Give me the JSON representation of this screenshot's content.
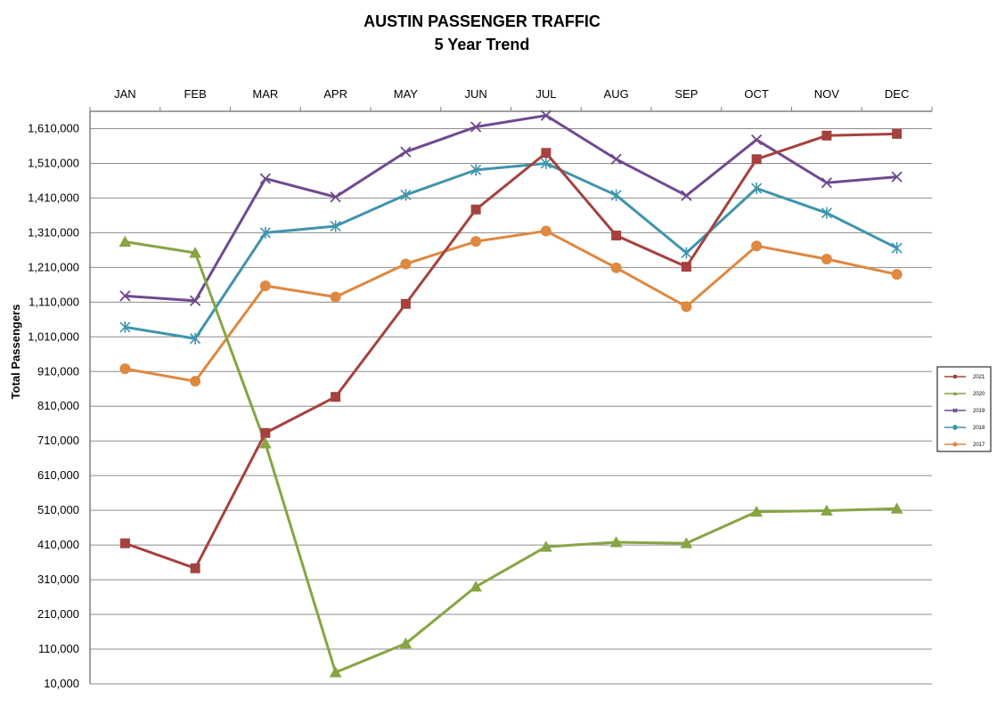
{
  "chart_data": {
    "type": "line",
    "title": "AUSTIN PASSENGER TRAFFIC",
    "subtitle": "5 Year Trend",
    "xlabel": "",
    "ylabel": "Total Passengers",
    "categories": [
      "JAN",
      "FEB",
      "MAR",
      "APR",
      "MAY",
      "JUN",
      "JUL",
      "AUG",
      "SEP",
      "OCT",
      "NOV",
      "DEC"
    ],
    "x_axis_position": "top",
    "ylim": [
      10000,
      1660000
    ],
    "yticks": [
      10000,
      110000,
      210000,
      310000,
      410000,
      510000,
      610000,
      710000,
      810000,
      910000,
      1010000,
      1110000,
      1210000,
      1310000,
      1410000,
      1510000,
      1610000
    ],
    "ytick_labels": [
      "10,000",
      "110,000",
      "210,000",
      "310,000",
      "410,000",
      "510,000",
      "610,000",
      "710,000",
      "810,000",
      "910,000",
      "1,010,000",
      "1,110,000",
      "1,210,000",
      "1,310,000",
      "1,410,000",
      "1,510,000",
      "1,610,000"
    ],
    "grid": true,
    "legend_position": "right",
    "series": [
      {
        "name": "2021",
        "color": "#A5413E",
        "marker": "square",
        "values": [
          415000,
          343000,
          733000,
          837000,
          1105000,
          1377000,
          1540000,
          1302000,
          1212000,
          1522000,
          1590000,
          1595000
        ]
      },
      {
        "name": "2020",
        "color": "#86A543",
        "marker": "triangle",
        "values": [
          1284000,
          1252000,
          703000,
          43000,
          126000,
          290000,
          405000,
          418000,
          415000,
          506000,
          509000,
          515000
        ]
      },
      {
        "name": "2019",
        "color": "#6F4A8F",
        "marker": "x",
        "values": [
          1128000,
          1114000,
          1466000,
          1413000,
          1543000,
          1615000,
          1648000,
          1522000,
          1417000,
          1578000,
          1454000,
          1471000
        ]
      },
      {
        "name": "2018",
        "color": "#3F94AC",
        "marker": "star",
        "values": [
          1038000,
          1005000,
          1310000,
          1329000,
          1419000,
          1491000,
          1510000,
          1418000,
          1252000,
          1438000,
          1367000,
          1266000
        ]
      },
      {
        "name": "2017",
        "color": "#DE8840",
        "marker": "circle",
        "values": [
          918000,
          882000,
          1157000,
          1125000,
          1220000,
          1285000,
          1315000,
          1209000,
          1097000,
          1272000,
          1234000,
          1190000
        ]
      }
    ]
  }
}
